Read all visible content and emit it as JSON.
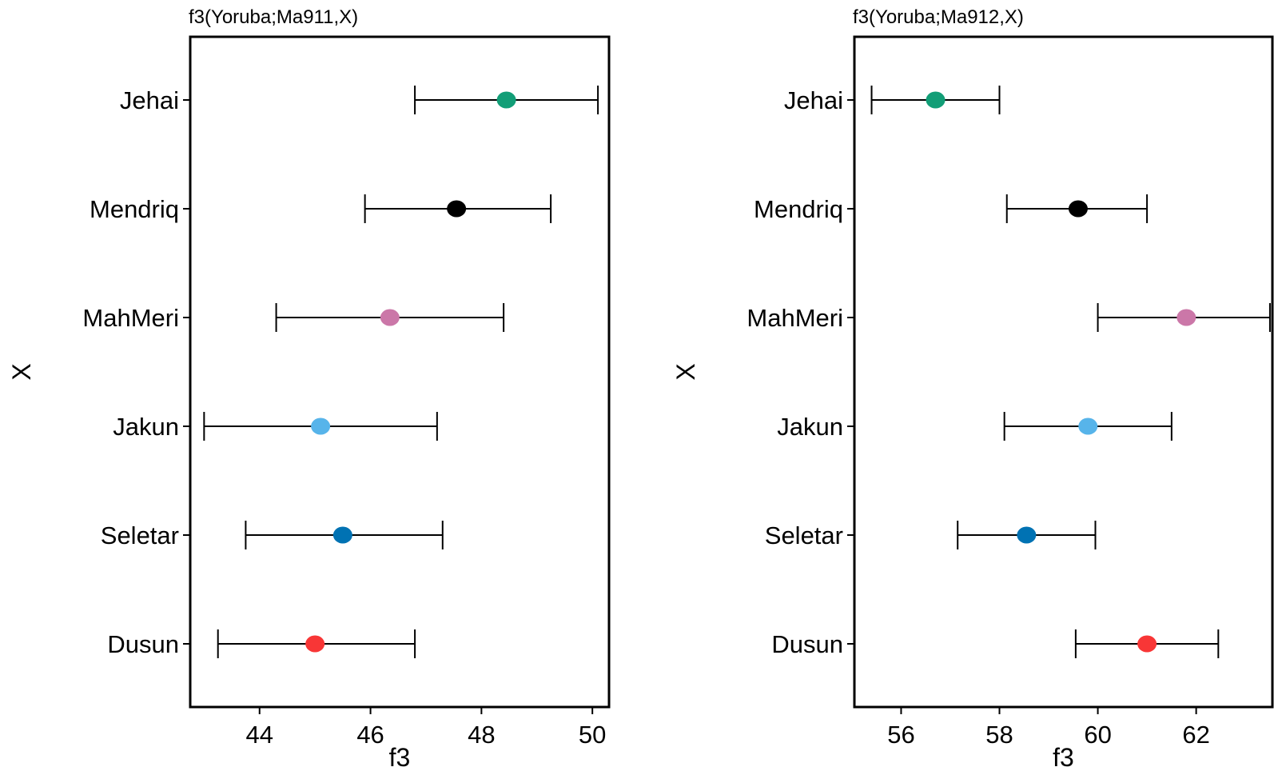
{
  "chart_data": [
    {
      "type": "scatter",
      "title": "f3(Yoruba;Ma911,X)",
      "xlabel": "f3",
      "ylabel": "X",
      "xlim": [
        42.75,
        50.3
      ],
      "xticks": [
        44,
        46,
        48,
        50
      ],
      "xtick_labels": [
        "44",
        "46",
        "48",
        "50"
      ],
      "categories": [
        "Jehai",
        "Mendriq",
        "MahMeri",
        "Jakun",
        "Seletar",
        "Dusun"
      ],
      "values": [
        48.45,
        47.55,
        46.35,
        45.1,
        45.5,
        45.0
      ],
      "error_low": [
        46.8,
        45.9,
        44.3,
        43.0,
        43.75,
        43.25
      ],
      "error_high": [
        50.1,
        49.25,
        48.4,
        47.2,
        47.3,
        46.8
      ],
      "colors": [
        "#129e77",
        "#000000",
        "#cb77a8",
        "#57b4ea",
        "#0072b3",
        "#f83636"
      ]
    },
    {
      "type": "scatter",
      "title": "f3(Yoruba;Ma912,X)",
      "xlabel": "f3",
      "ylabel": "X",
      "xlim": [
        55.05,
        63.55
      ],
      "xticks": [
        56,
        58,
        60,
        62
      ],
      "xtick_labels": [
        "56",
        "58",
        "60",
        "62"
      ],
      "categories": [
        "Jehai",
        "Mendriq",
        "MahMeri",
        "Jakun",
        "Seletar",
        "Dusun"
      ],
      "values": [
        56.7,
        59.6,
        61.8,
        59.8,
        58.55,
        61.0
      ],
      "error_low": [
        55.4,
        58.15,
        60.0,
        58.1,
        57.15,
        59.55
      ],
      "error_high": [
        58.0,
        61.0,
        63.5,
        61.5,
        59.95,
        62.45
      ],
      "colors": [
        "#129e77",
        "#000000",
        "#cb77a8",
        "#57b4ea",
        "#0072b3",
        "#f83636"
      ]
    }
  ]
}
